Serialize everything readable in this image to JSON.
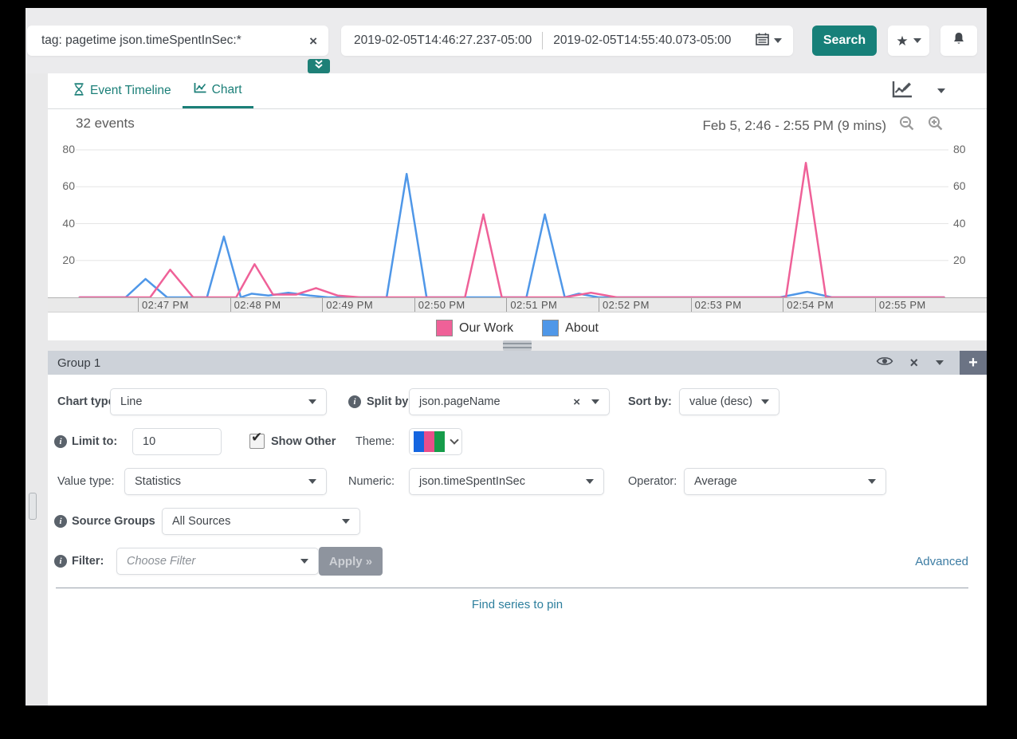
{
  "ui": {
    "info_glyph": "i",
    "check_glyph": "✔",
    "close_glyph": "×",
    "plus_label": "+",
    "star_glyph": "★"
  },
  "topbar": {
    "query": "tag: pagetime json.timeSpentInSec:*",
    "start_time": "2019-02-05T14:46:27.237-05:00",
    "end_time": "2019-02-05T14:55:40.073-05:00",
    "search_label": "Search"
  },
  "tabs": {
    "event_timeline": "Event Timeline",
    "chart": "Chart"
  },
  "chart_data": {
    "type": "line",
    "title": "32 events",
    "subtitle": "Feb 5, 2:46 - 2:55 PM  (9 mins)",
    "x_unit": "seconds after 2:46 PM",
    "ylim": [
      0,
      85
    ],
    "yticks": [
      20,
      40,
      60,
      80
    ],
    "grid": "horizontal",
    "legend_position": "bottom",
    "x_ticks": [
      {
        "t": 60,
        "label": "02:47 PM"
      },
      {
        "t": 120,
        "label": "02:48 PM"
      },
      {
        "t": 180,
        "label": "02:49 PM"
      },
      {
        "t": 240,
        "label": "02:50 PM"
      },
      {
        "t": 300,
        "label": "02:51 PM"
      },
      {
        "t": 360,
        "label": "02:52 PM"
      },
      {
        "t": 420,
        "label": "02:53 PM"
      },
      {
        "t": 480,
        "label": "02:54 PM"
      },
      {
        "t": 540,
        "label": "02:55 PM"
      }
    ],
    "series": [
      {
        "name": "Our Work",
        "color": "#ef6198",
        "points": [
          [
            22,
            0
          ],
          [
            68,
            0
          ],
          [
            81,
            15
          ],
          [
            96,
            0
          ],
          [
            124,
            0
          ],
          [
            136,
            18
          ],
          [
            148,
            1.5
          ],
          [
            163,
            1.5
          ],
          [
            176,
            5
          ],
          [
            190,
            1
          ],
          [
            205,
            0
          ],
          [
            273,
            0
          ],
          [
            285,
            45
          ],
          [
            297,
            0
          ],
          [
            338,
            0
          ],
          [
            355,
            2.5
          ],
          [
            372,
            0
          ],
          [
            482,
            0
          ],
          [
            495,
            73
          ],
          [
            508,
            0
          ],
          [
            585,
            0
          ]
        ]
      },
      {
        "name": "About",
        "color": "#4f97e8",
        "points": [
          [
            22,
            0
          ],
          [
            52,
            0
          ],
          [
            65,
            10
          ],
          [
            79,
            0
          ],
          [
            105,
            0
          ],
          [
            116,
            33
          ],
          [
            127,
            0
          ],
          [
            134,
            2
          ],
          [
            145,
            1
          ],
          [
            158,
            2.5
          ],
          [
            172,
            1
          ],
          [
            184,
            0
          ],
          [
            222,
            0
          ],
          [
            235,
            67
          ],
          [
            248,
            0
          ],
          [
            313,
            0
          ],
          [
            325,
            45
          ],
          [
            338,
            0
          ],
          [
            347,
            2
          ],
          [
            360,
            0
          ],
          [
            478,
            0
          ],
          [
            496,
            3
          ],
          [
            512,
            0
          ],
          [
            585,
            0
          ]
        ]
      }
    ]
  },
  "group": {
    "title": "Group 1",
    "chart_type_label": "Chart type:",
    "chart_type_value": "Line",
    "split_by_label": "Split by:",
    "split_by_value": "json.pageName",
    "sort_by_label": "Sort by:",
    "sort_by_value": "value (desc)",
    "limit_label": "Limit to:",
    "limit_value": "10",
    "show_other_label": "Show Other",
    "theme_label": "Theme:",
    "theme_colors": [
      "#1565e0",
      "#e94e8a",
      "#169c4a"
    ],
    "value_type_label": "Value type:",
    "value_type_value": "Statistics",
    "numeric_label": "Numeric:",
    "numeric_value": "json.timeSpentInSec",
    "operator_label": "Operator:",
    "operator_value": "Average",
    "source_groups_label": "Source Groups",
    "source_groups_value": "All Sources",
    "filter_label": "Filter:",
    "filter_placeholder": "Choose Filter",
    "apply_label": "Apply »",
    "advanced_label": "Advanced",
    "find_series_label": "Find series to pin"
  }
}
